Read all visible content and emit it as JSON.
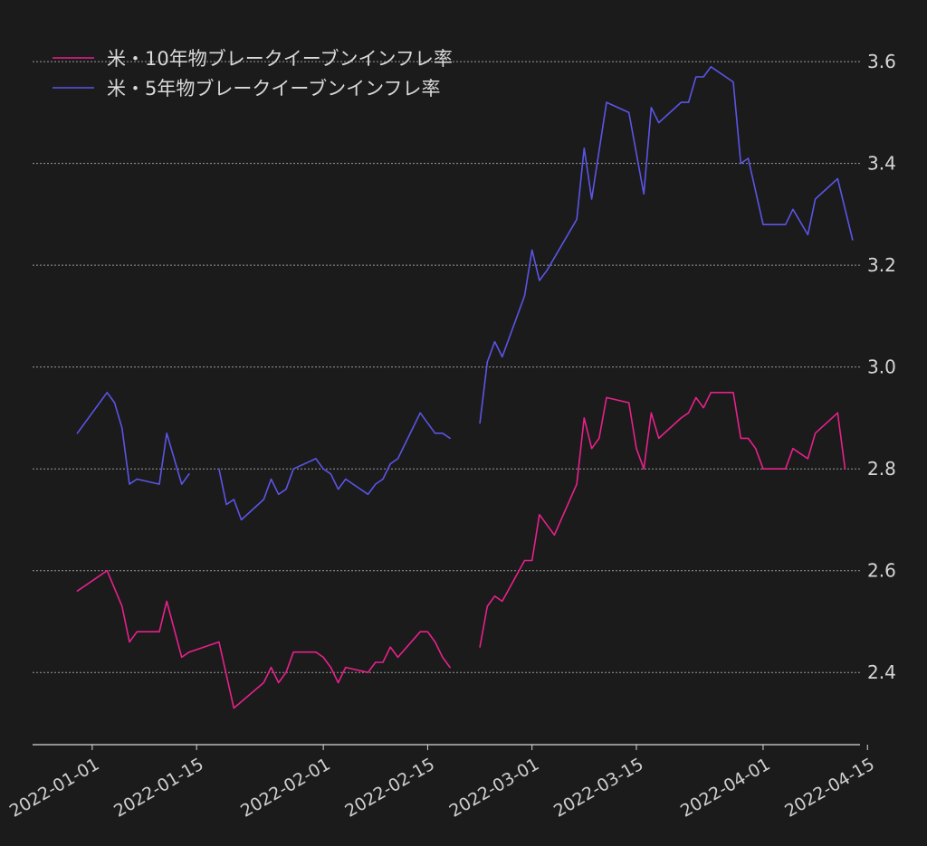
{
  "colors": {
    "background": "#1b1b1b",
    "grid": "#9a9a9a",
    "axis": "#d8d8d8",
    "text": "#d6d6d6"
  },
  "chart_data": {
    "type": "line",
    "grid": "horizontal dashed",
    "legend_position": "top-left",
    "y_axis_side": "right",
    "ylim": [
      2.26,
      3.65
    ],
    "yticks": [
      2.4,
      2.6,
      2.8,
      3.0,
      3.2,
      3.4,
      3.6
    ],
    "ytick_labels": [
      "2.4",
      "2.6",
      "2.8",
      "3.0",
      "3.2",
      "3.4",
      "3.6"
    ],
    "xlim": [
      "2021-12-24",
      "2022-04-14"
    ],
    "xticks": [
      "2022-01-01",
      "2022-01-15",
      "2022-02-01",
      "2022-02-15",
      "2022-03-01",
      "2022-03-15",
      "2022-04-01",
      "2022-04-15"
    ],
    "xtick_labels": [
      "2022-01-01",
      "2022-01-15",
      "2022-02-01",
      "2022-02-15",
      "2022-03-01",
      "2022-03-15",
      "2022-04-01",
      "2022-04-15"
    ],
    "series": [
      {
        "name": "米・10年物ブレークイーブンインフレ率",
        "color": "#e8208c",
        "points": [
          [
            "2021-12-30",
            2.56
          ],
          [
            "2022-01-03",
            2.6
          ],
          [
            "2022-01-05",
            2.53
          ],
          [
            "2022-01-06",
            2.46
          ],
          [
            "2022-01-07",
            2.48
          ],
          [
            "2022-01-10",
            2.48
          ],
          [
            "2022-01-11",
            2.54
          ],
          [
            "2022-01-13",
            2.43
          ],
          [
            "2022-01-14",
            2.44
          ],
          [
            "2022-01-18",
            2.46
          ],
          [
            "2022-01-20",
            2.33
          ],
          [
            "2022-01-24",
            2.38
          ],
          [
            "2022-01-25",
            2.41
          ],
          [
            "2022-01-26",
            2.38
          ],
          [
            "2022-01-27",
            2.4
          ],
          [
            "2022-01-28",
            2.44
          ],
          [
            "2022-01-31",
            2.44
          ],
          [
            "2022-02-01",
            2.43
          ],
          [
            "2022-02-02",
            2.41
          ],
          [
            "2022-02-03",
            2.38
          ],
          [
            "2022-02-04",
            2.41
          ],
          [
            "2022-02-07",
            2.4
          ],
          [
            "2022-02-08",
            2.42
          ],
          [
            "2022-02-09",
            2.42
          ],
          [
            "2022-02-10",
            2.45
          ],
          [
            "2022-02-11",
            2.43
          ],
          [
            "2022-02-14",
            2.48
          ],
          [
            "2022-02-15",
            2.48
          ],
          [
            "2022-02-16",
            2.46
          ],
          [
            "2022-02-17",
            2.43
          ],
          [
            "2022-02-18",
            2.41
          ],
          null,
          [
            "2022-02-22",
            2.45
          ],
          [
            "2022-02-23",
            2.53
          ],
          [
            "2022-02-24",
            2.55
          ],
          [
            "2022-02-25",
            2.54
          ],
          [
            "2022-02-28",
            2.62
          ],
          [
            "2022-03-01",
            2.62
          ],
          [
            "2022-03-02",
            2.71
          ],
          [
            "2022-03-04",
            2.67
          ],
          [
            "2022-03-07",
            2.77
          ],
          [
            "2022-03-08",
            2.9
          ],
          [
            "2022-03-09",
            2.84
          ],
          [
            "2022-03-10",
            2.86
          ],
          [
            "2022-03-11",
            2.94
          ],
          [
            "2022-03-14",
            2.93
          ],
          [
            "2022-03-15",
            2.84
          ],
          [
            "2022-03-16",
            2.8
          ],
          [
            "2022-03-17",
            2.91
          ],
          [
            "2022-03-18",
            2.86
          ],
          [
            "2022-03-21",
            2.9
          ],
          [
            "2022-03-22",
            2.91
          ],
          [
            "2022-03-23",
            2.94
          ],
          [
            "2022-03-24",
            2.92
          ],
          [
            "2022-03-25",
            2.95
          ],
          [
            "2022-03-28",
            2.95
          ],
          [
            "2022-03-29",
            2.86
          ],
          [
            "2022-03-30",
            2.86
          ],
          [
            "2022-03-31",
            2.84
          ],
          [
            "2022-04-01",
            2.8
          ],
          [
            "2022-04-04",
            2.8
          ],
          [
            "2022-04-05",
            2.84
          ],
          [
            "2022-04-06",
            2.83
          ],
          [
            "2022-04-07",
            2.82
          ],
          [
            "2022-04-08",
            2.87
          ],
          [
            "2022-04-11",
            2.91
          ],
          [
            "2022-04-12",
            2.8
          ]
        ]
      },
      {
        "name": "米・5年物ブレークイーブンインフレ率",
        "color": "#5b55e6",
        "points": [
          [
            "2021-12-30",
            2.87
          ],
          [
            "2022-01-03",
            2.95
          ],
          [
            "2022-01-04",
            2.93
          ],
          [
            "2022-01-05",
            2.88
          ],
          [
            "2022-01-06",
            2.77
          ],
          [
            "2022-01-07",
            2.78
          ],
          [
            "2022-01-10",
            2.77
          ],
          [
            "2022-01-11",
            2.87
          ],
          [
            "2022-01-13",
            2.77
          ],
          [
            "2022-01-14",
            2.79
          ],
          null,
          [
            "2022-01-18",
            2.8
          ],
          [
            "2022-01-19",
            2.73
          ],
          [
            "2022-01-20",
            2.74
          ],
          [
            "2022-01-21",
            2.7
          ],
          [
            "2022-01-24",
            2.74
          ],
          [
            "2022-01-25",
            2.78
          ],
          [
            "2022-01-26",
            2.75
          ],
          [
            "2022-01-27",
            2.76
          ],
          [
            "2022-01-28",
            2.8
          ],
          [
            "2022-01-31",
            2.82
          ],
          [
            "2022-02-01",
            2.8
          ],
          [
            "2022-02-02",
            2.79
          ],
          [
            "2022-02-03",
            2.76
          ],
          [
            "2022-02-04",
            2.78
          ],
          [
            "2022-02-07",
            2.75
          ],
          [
            "2022-02-08",
            2.77
          ],
          [
            "2022-02-09",
            2.78
          ],
          [
            "2022-02-10",
            2.81
          ],
          [
            "2022-02-11",
            2.82
          ],
          [
            "2022-02-14",
            2.91
          ],
          [
            "2022-02-16",
            2.87
          ],
          [
            "2022-02-17",
            2.87
          ],
          [
            "2022-02-18",
            2.86
          ],
          null,
          [
            "2022-02-22",
            2.89
          ],
          [
            "2022-02-23",
            3.01
          ],
          [
            "2022-02-24",
            3.05
          ],
          [
            "2022-02-25",
            3.02
          ],
          [
            "2022-02-28",
            3.14
          ],
          [
            "2022-03-01",
            3.23
          ],
          [
            "2022-03-02",
            3.17
          ],
          [
            "2022-03-03",
            3.19
          ],
          [
            "2022-03-07",
            3.29
          ],
          [
            "2022-03-08",
            3.43
          ],
          [
            "2022-03-09",
            3.33
          ],
          [
            "2022-03-11",
            3.52
          ],
          [
            "2022-03-14",
            3.5
          ],
          [
            "2022-03-16",
            3.34
          ],
          [
            "2022-03-17",
            3.51
          ],
          [
            "2022-03-18",
            3.48
          ],
          [
            "2022-03-21",
            3.52
          ],
          [
            "2022-03-22",
            3.52
          ],
          [
            "2022-03-23",
            3.57
          ],
          [
            "2022-03-24",
            3.57
          ],
          [
            "2022-03-25",
            3.59
          ],
          [
            "2022-03-28",
            3.56
          ],
          [
            "2022-03-29",
            3.4
          ],
          [
            "2022-03-30",
            3.41
          ],
          [
            "2022-04-01",
            3.28
          ],
          [
            "2022-04-04",
            3.28
          ],
          [
            "2022-04-05",
            3.31
          ],
          [
            "2022-04-07",
            3.26
          ],
          [
            "2022-04-08",
            3.33
          ],
          [
            "2022-04-11",
            3.37
          ],
          [
            "2022-04-13",
            3.25
          ]
        ]
      }
    ]
  }
}
